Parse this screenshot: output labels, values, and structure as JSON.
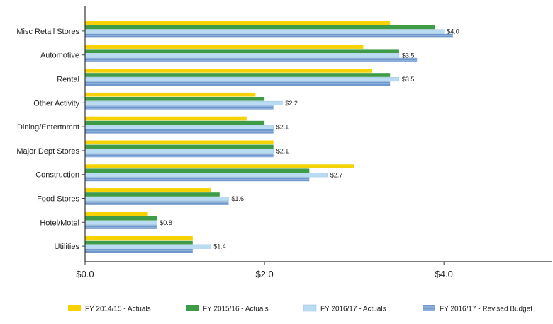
{
  "chart_data": {
    "type": "bar",
    "orientation": "horizontal",
    "categories": [
      "Misc Retail Stores",
      "Automotive",
      "Rental",
      "Other Activity",
      "Dining/Entertnmnt",
      "Major Dept Stores",
      "Construction",
      "Food Stores",
      "Hotel/Motel",
      "Utilities"
    ],
    "series": [
      {
        "name": "FY 2014/15 - Actuals",
        "color": "#f5d200",
        "values": [
          3.4,
          3.1,
          3.2,
          1.9,
          1.8,
          2.1,
          3.0,
          1.4,
          0.7,
          1.2
        ]
      },
      {
        "name": "FY 2015/16 - Actuals",
        "color": "#3e9b48",
        "values": [
          3.9,
          3.5,
          3.4,
          2.0,
          2.0,
          2.1,
          2.5,
          1.5,
          0.8,
          1.2
        ]
      },
      {
        "name": "FY 2016/17 - Actuals",
        "color": "#b9dcf2",
        "values": [
          4.0,
          3.5,
          3.5,
          2.2,
          2.1,
          2.1,
          2.7,
          1.6,
          0.8,
          1.4
        ]
      },
      {
        "name": "FY 2016/17 - Revised Budget",
        "color": "#6f98cc",
        "values": [
          4.1,
          3.7,
          3.4,
          2.1,
          2.1,
          2.1,
          2.5,
          1.6,
          0.8,
          1.2
        ]
      }
    ],
    "value_labels": [
      "$4.0",
      "$3.5",
      "$3.5",
      "$2.2",
      "$2.1",
      "$2.1",
      "$2.7",
      "$1.6",
      "$0.8",
      "$1.4"
    ],
    "value_label_series": "FY 2016/17 - Actuals",
    "xlim": [
      0,
      5.2
    ],
    "xticks": [
      0,
      2,
      4
    ],
    "xtick_labels": [
      "$0.0",
      "$2.0",
      "$4.0"
    ],
    "title": "",
    "xlabel": "",
    "ylabel": "",
    "grid": false,
    "legend_position": "bottom"
  }
}
